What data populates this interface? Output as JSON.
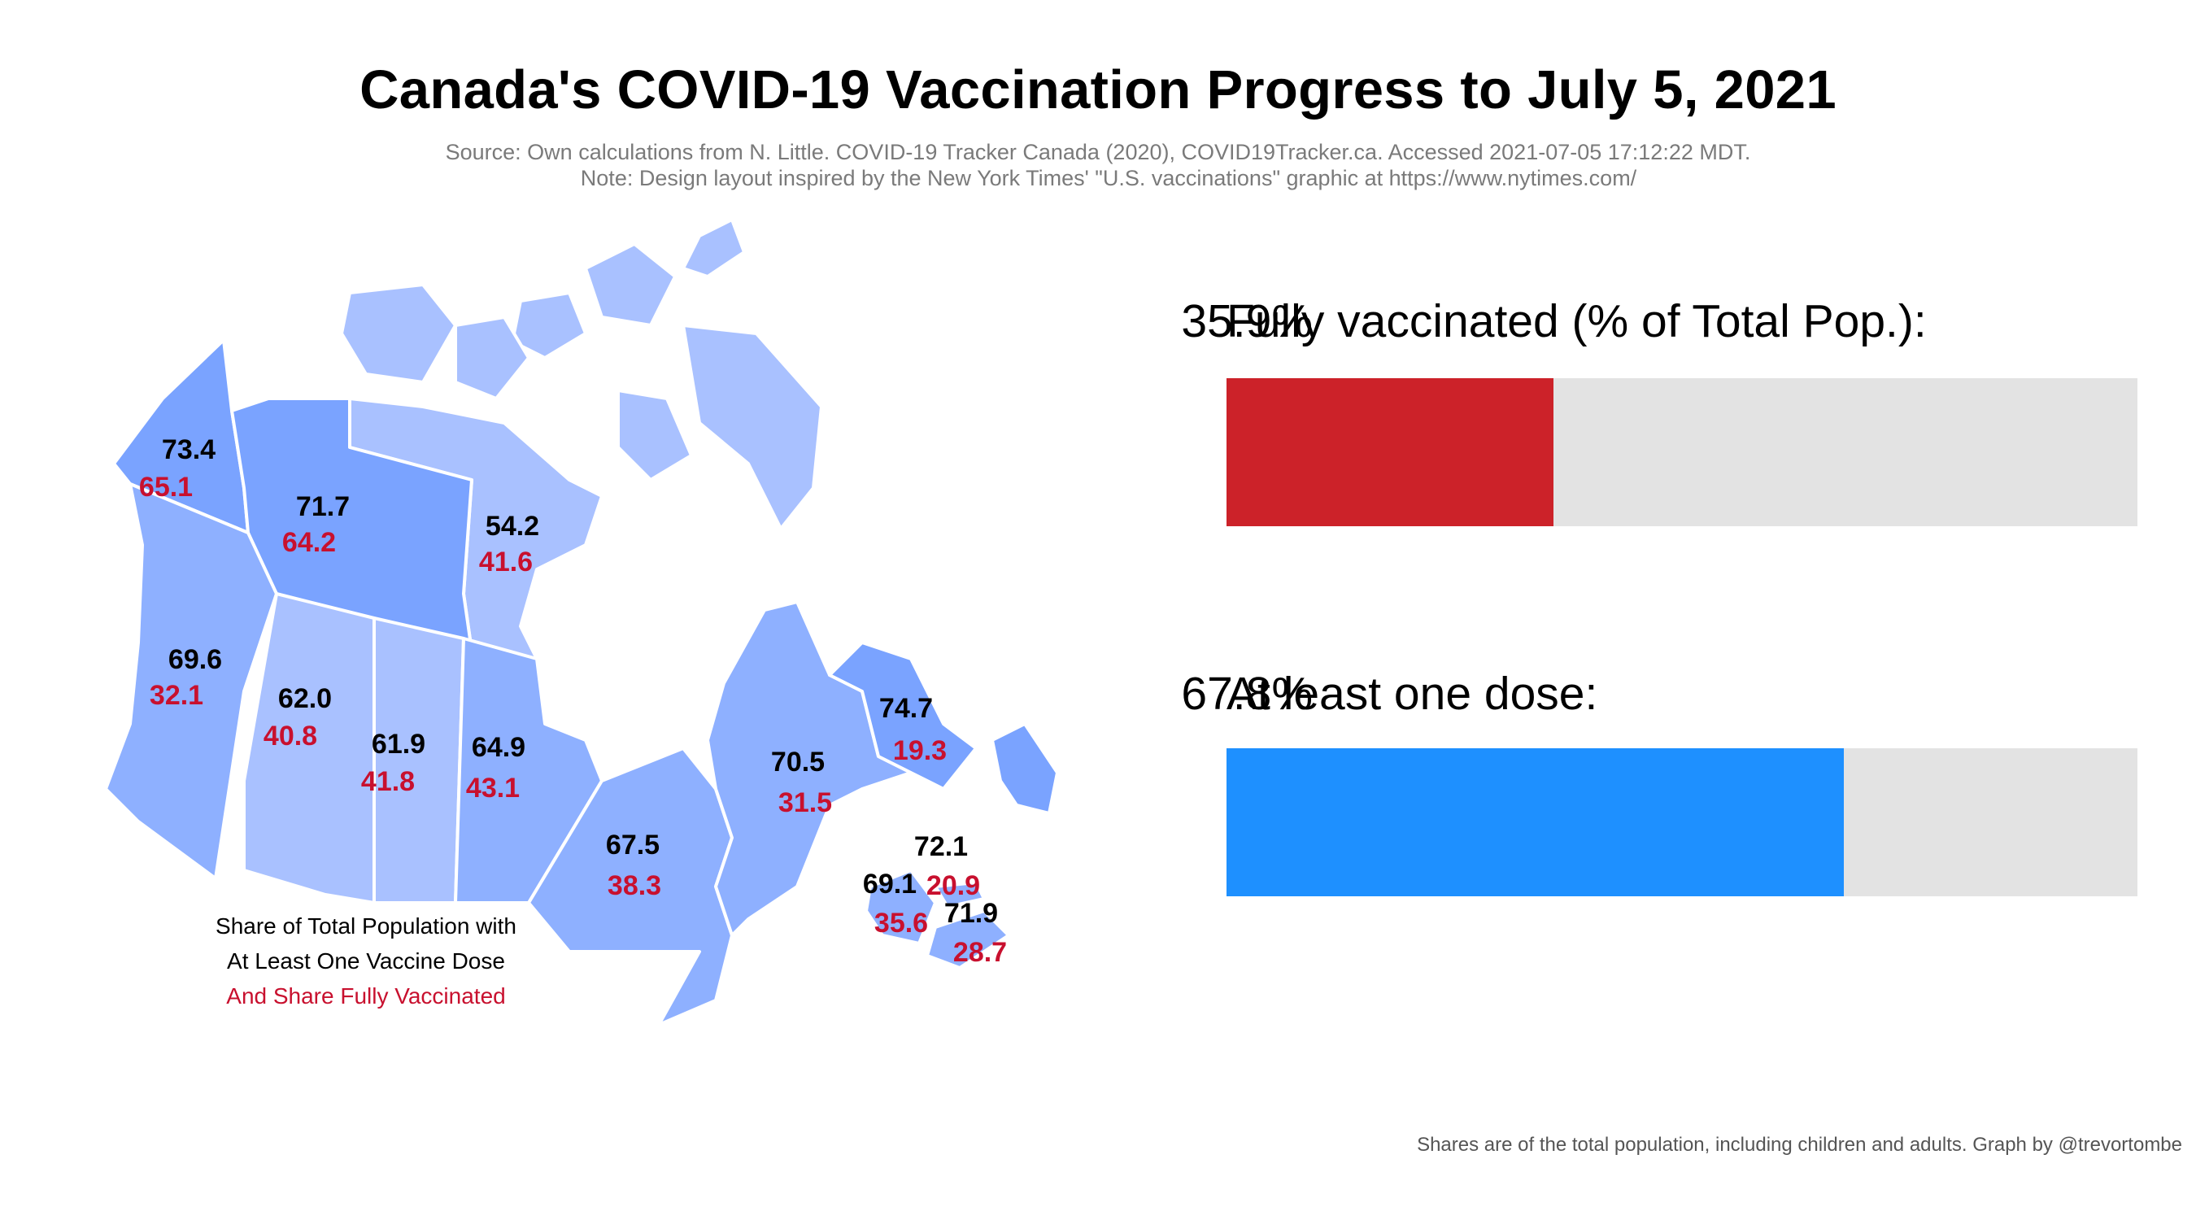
{
  "title": "Canada's COVID-19 Vaccination Progress to July 5, 2021",
  "source_line1": "Source: Own calculations from N. Little. COVID-19 Tracker Canada (2020), COVID19Tracker.ca. Accessed 2021-07-05 17:12:22 MDT.",
  "source_line2": "Note: Design layout inspired by the New York Times' \"U.S. vaccinations\" graphic at https://www.nytimes.com/",
  "legend": {
    "line1": "Share of Total Population with",
    "line2": "At Least One Vaccine Dose",
    "line3": "And Share Fully Vaccinated"
  },
  "colors": {
    "one_dose_text": "#000000",
    "fully_text": "#c8102e",
    "fully_bar": "#cc2229",
    "one_dose_bar": "#1e90ff",
    "bar_track": "#e3e3e3",
    "map_light": "#a9c1ff",
    "map_mid": "#8eb0ff",
    "map_dark": "#7aa3ff"
  },
  "bars": [
    {
      "label": "Fully vaccinated (% of Total Pop.):",
      "value_text": "35.9%",
      "value": 35.9,
      "color": "#cc2229"
    },
    {
      "label": "At least one dose:",
      "value_text": "67.8%",
      "value": 67.8,
      "color": "#1e90ff"
    }
  ],
  "regions": [
    {
      "name": "Yukon",
      "one_dose": "73.4",
      "fully": "65.1"
    },
    {
      "name": "Northwest Territories",
      "one_dose": "71.7",
      "fully": "64.2"
    },
    {
      "name": "Nunavut",
      "one_dose": "54.2",
      "fully": "41.6"
    },
    {
      "name": "British Columbia",
      "one_dose": "69.6",
      "fully": "32.1"
    },
    {
      "name": "Alberta",
      "one_dose": "62.0",
      "fully": "40.8"
    },
    {
      "name": "Saskatchewan",
      "one_dose": "61.9",
      "fully": "41.8"
    },
    {
      "name": "Manitoba",
      "one_dose": "64.9",
      "fully": "43.1"
    },
    {
      "name": "Ontario",
      "one_dose": "67.5",
      "fully": "38.3"
    },
    {
      "name": "Quebec",
      "one_dose": "70.5",
      "fully": "31.5"
    },
    {
      "name": "Newfoundland and Labrador",
      "one_dose": "74.7",
      "fully": "19.3"
    },
    {
      "name": "Prince Edward Island",
      "one_dose": "72.1",
      "fully": "20.9"
    },
    {
      "name": "New Brunswick",
      "one_dose": "69.1",
      "fully": "35.6"
    },
    {
      "name": "Nova Scotia",
      "one_dose": "71.9",
      "fully": "28.7"
    }
  ],
  "footer": "Shares are of the total population, including children and adults. Graph by @trevortombe"
}
